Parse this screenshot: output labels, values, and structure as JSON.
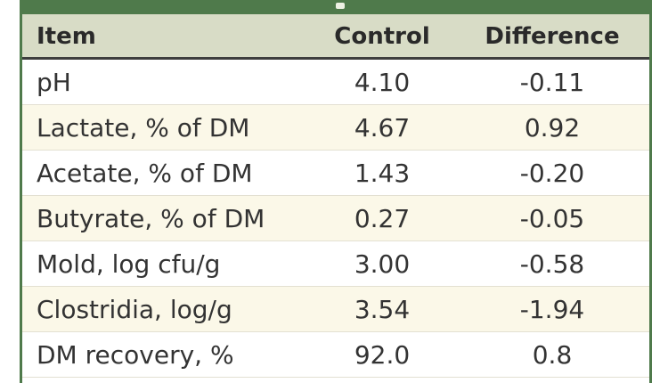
{
  "table": {
    "headers": {
      "item": "Item",
      "control": "Control",
      "difference": "Difference"
    },
    "rows": [
      {
        "item": "pH",
        "control": "4.10",
        "difference": "-0.11"
      },
      {
        "item": "Lactate, % of DM",
        "control": "4.67",
        "difference": "0.92"
      },
      {
        "item": "Acetate, % of DM",
        "control": "1.43",
        "difference": "-0.20"
      },
      {
        "item": "Butyrate, % of DM",
        "control": "0.27",
        "difference": "-0.05"
      },
      {
        "item": "Mold, log cfu/g",
        "control": "3.00",
        "difference": "-0.58"
      },
      {
        "item": "Clostridia, log/g",
        "control": "3.54",
        "difference": "-1.94"
      },
      {
        "item": "DM recovery, %",
        "control": "92.0",
        "difference": "0.8"
      }
    ]
  },
  "colors": {
    "frame": "#4f7a4b",
    "header_background": "#d8dcc6",
    "alternate_row": "#fbf8e8"
  }
}
